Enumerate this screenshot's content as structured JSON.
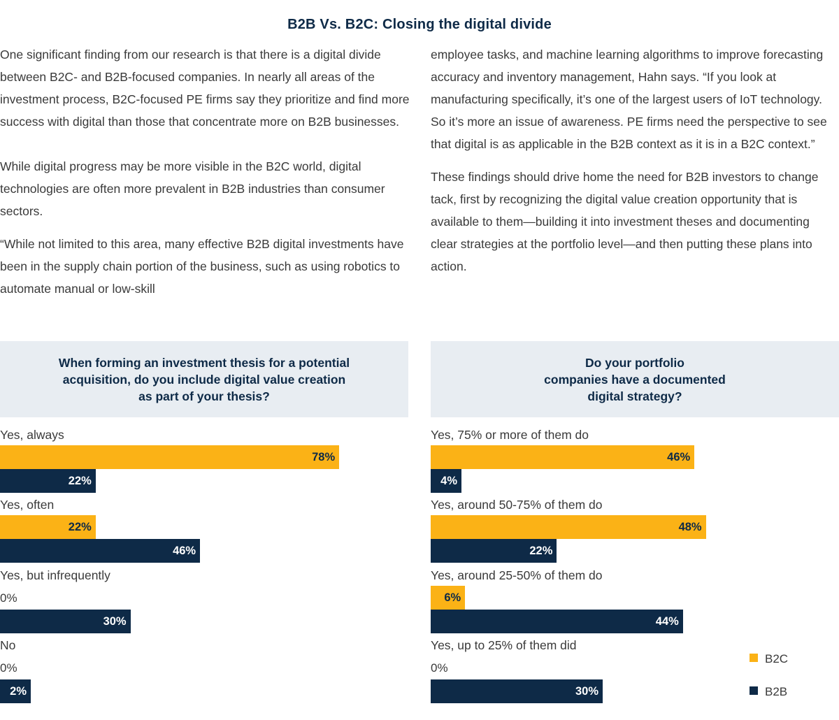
{
  "title": "B2B Vs. B2C: Closing the digital divide",
  "body": {
    "left": [
      "One significant finding from our research is that there is a digital divide between B2C- and B2B-focused companies. In nearly all areas of the investment process, B2C-focused PE firms say they prioritize and find more success with digital than those that concentrate more on B2B businesses.",
      "While digital progress may be more visible in the B2C world, digital technologies are often more prevalent in B2B industries than consumer sectors.",
      "“While not limited to this area, many effective B2B digital investments have been in the supply chain portion of the business, such as using robotics to automate manual or low-skill"
    ],
    "right": [
      "employee tasks, and machine learning algorithms to improve forecasting accuracy and inventory management, Hahn says. “If you look at manufacturing specifically, it’s one of the largest users of IoT technology. So it’s more an issue of awareness. PE firms need the perspective to see that digital is as applicable in the B2B context as it is in a B2C context.”",
      "These findings should drive home the need for B2B investors to change tack, first by recognizing the digital value creation opportunity that is available to them—building it into investment theses and documenting clear strategies at the portfolio level—and then putting these plans into action."
    ]
  },
  "legend": {
    "b2c": "B2C",
    "b2b": "B2B"
  },
  "colors": {
    "b2c": "#fbb216",
    "b2b": "#0e2a47",
    "question_bg": "#e8edf2"
  },
  "chart_data": [
    {
      "type": "bar",
      "orientation": "horizontal",
      "title_lines": [
        "When forming an investment thesis for a potential",
        "acquisition, do you include digital value creation",
        "as part of your thesis?"
      ],
      "categories": [
        "Yes, always",
        "Yes, often",
        "Yes, but infrequently",
        "No"
      ],
      "series": [
        {
          "name": "B2C",
          "values": [
            78,
            22,
            0,
            0
          ],
          "labels": [
            "78%",
            "22%",
            "0%",
            "0%"
          ]
        },
        {
          "name": "B2B",
          "values": [
            22,
            46,
            30,
            2
          ],
          "labels": [
            "22%",
            "46%",
            "30%",
            "2%"
          ]
        }
      ],
      "unit": "%"
    },
    {
      "type": "bar",
      "orientation": "horizontal",
      "title_lines": [
        "Do your portfolio",
        "companies have a documented",
        "digital strategy?"
      ],
      "categories": [
        "Yes, 75% or more of them do",
        "Yes, around 50-75% of them do",
        "Yes, around 25-50% of them do",
        "Yes, up to 25% of them did"
      ],
      "series": [
        {
          "name": "B2C",
          "values": [
            46,
            48,
            6,
            0
          ],
          "labels": [
            "46%",
            "48%",
            "6%",
            "0%"
          ]
        },
        {
          "name": "B2B",
          "values": [
            4,
            22,
            44,
            30
          ],
          "labels": [
            "4%",
            "22%",
            "44%",
            "30%"
          ]
        }
      ],
      "unit": "%"
    }
  ]
}
